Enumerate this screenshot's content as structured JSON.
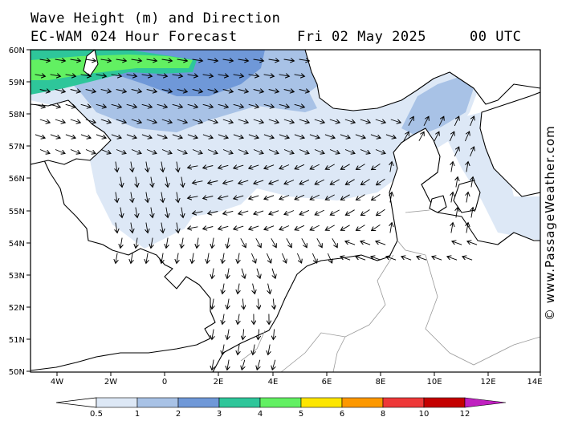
{
  "header": {
    "title_line1": "Wave Height (m) and Direction",
    "title_line2": "EC-WAM 024 Hour Forecast",
    "date": "Fri 02 May 2025",
    "time": "00 UTC"
  },
  "axes": {
    "lat_labels": [
      "60N",
      "59N",
      "58N",
      "57N",
      "56N",
      "55N",
      "54N",
      "53N",
      "52N",
      "51N",
      "50N"
    ],
    "lon_labels": [
      "4W",
      "2W",
      "0",
      "2E",
      "4E",
      "6E",
      "8E",
      "10E",
      "12E",
      "14E"
    ]
  },
  "legend": {
    "labels": [
      "0.5",
      "1",
      "2",
      "3",
      "4",
      "5",
      "6",
      "8",
      "10",
      "12"
    ],
    "colors": [
      "#dde8f6",
      "#a8c2e6",
      "#6f98d8",
      "#2ec69a",
      "#62f062",
      "#fde600",
      "#fd9800",
      "#ee3838",
      "#c40000",
      "#c020c0"
    ]
  },
  "credit": "© www.PassageWeather.com",
  "colors": {
    "land": "#ffffff",
    "sea": "#ffffff",
    "coast": "#000000",
    "border": "#9a9a9a"
  }
}
